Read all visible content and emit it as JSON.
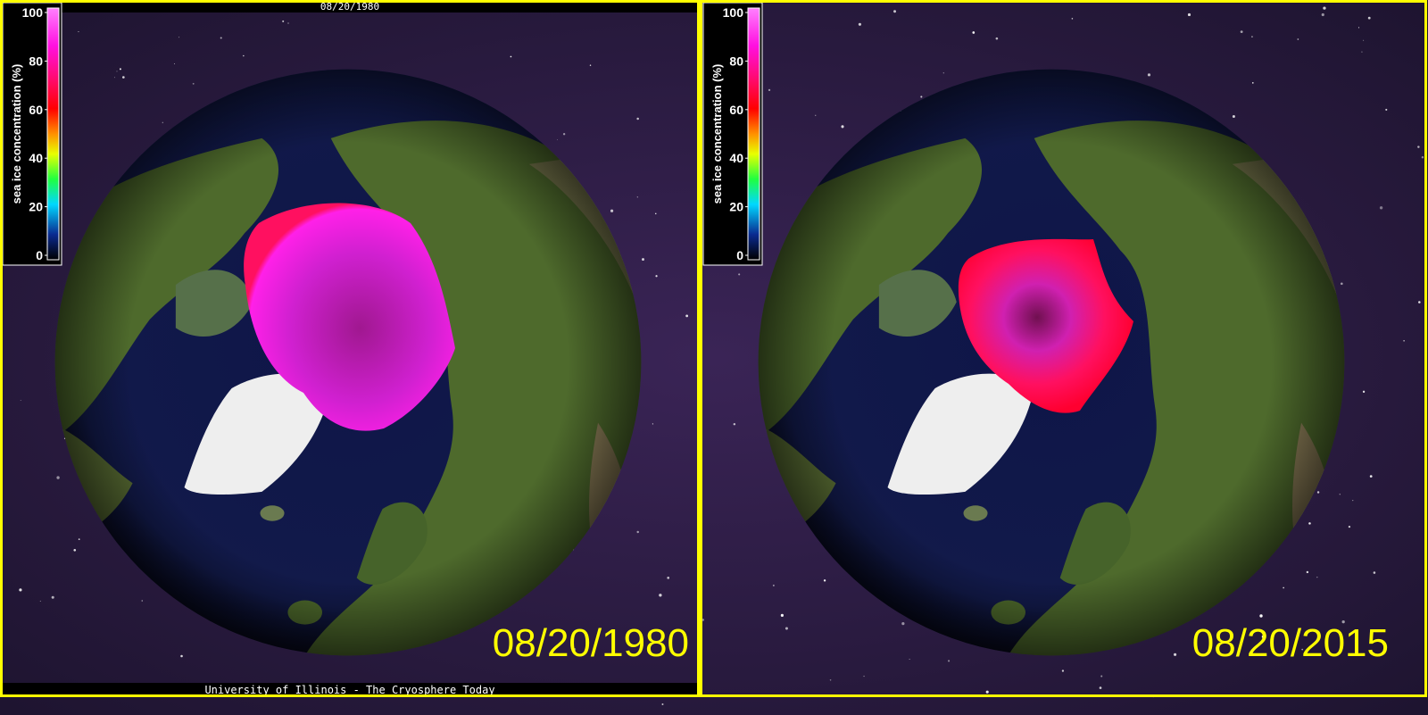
{
  "panels": [
    {
      "header": "08/20/1980",
      "date": "08/20/1980",
      "footer": "University of Illinois - The Cryosphere Today"
    },
    {
      "date": "08/20/2015"
    }
  ],
  "colorbar": {
    "label": "sea ice concentration (%)",
    "ticks": [
      0,
      20,
      40,
      60,
      80,
      100
    ]
  }
}
